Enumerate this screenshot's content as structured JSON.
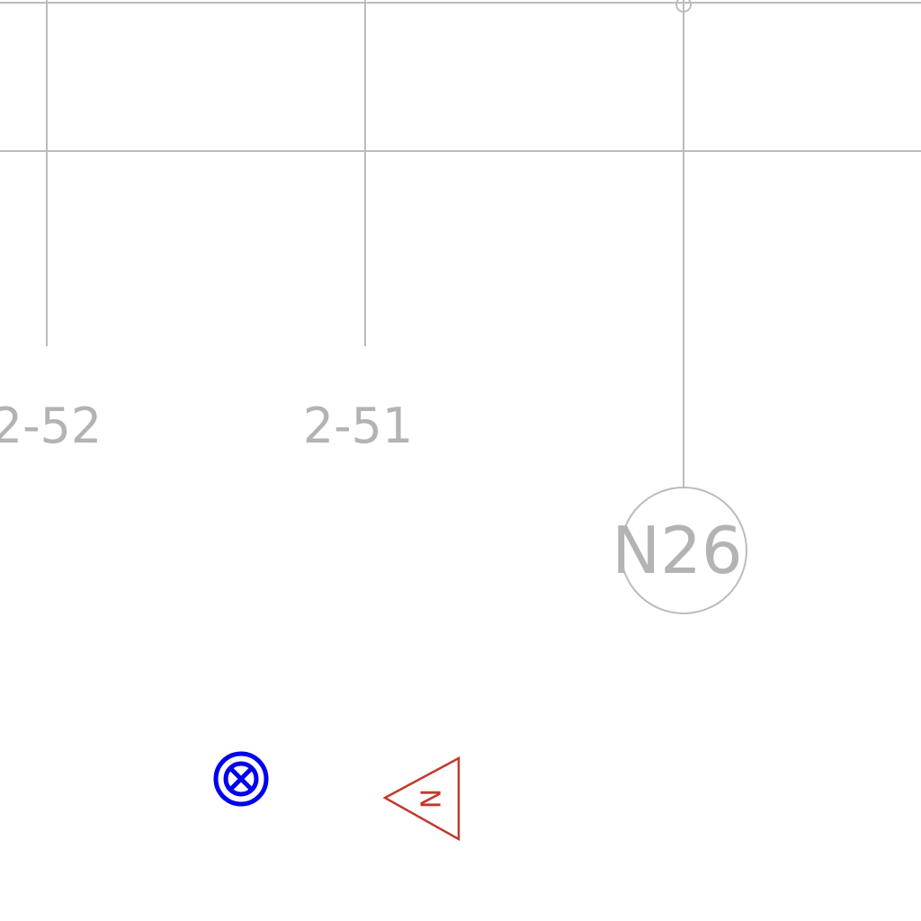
{
  "drawing": {
    "grid_labels": {
      "left": "2-52",
      "middle": "2-51"
    },
    "bubble_label": "N26",
    "north_marker_letter": "N"
  },
  "colors": {
    "grid": "#bcbcbc",
    "grid_text": "#b3b3b3",
    "target_marker": "#0000ee",
    "north_marker": "#c0392b"
  },
  "icons": {
    "target_marker": "crossed-circle-icon",
    "north_marker": "north-arrow-icon"
  }
}
